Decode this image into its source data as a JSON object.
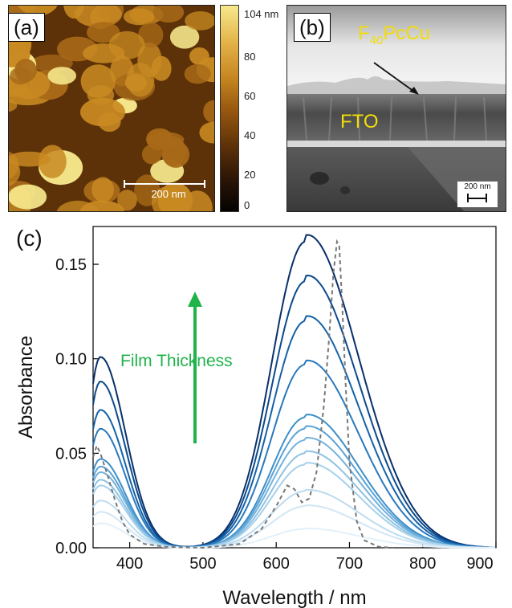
{
  "panel_a": {
    "label": "(a)",
    "scalebar_text": "200 nm",
    "colorbar": {
      "ticks": [
        "104 nm",
        "80",
        "60",
        "40",
        "20",
        "0"
      ],
      "colors": [
        "#050302",
        "#5e3208",
        "#c98a22",
        "#f6e88c"
      ]
    }
  },
  "panel_b": {
    "label": "(b)",
    "film_label_main": "F",
    "film_label_sub": "40",
    "film_label_rest": "PcCu",
    "substrate_label": "FTO",
    "scalebar_text": "200 nm",
    "label_color": "#f2dc0a"
  },
  "panel_c": {
    "label": "(c)",
    "annotation": "Film Thickness",
    "annotation_color": "#1fb34a"
  },
  "chart_data": {
    "type": "line",
    "xlabel": "Wavelength / nm",
    "ylabel": "Absorbance",
    "xlim": [
      350,
      900
    ],
    "ylim": [
      0,
      0.17
    ],
    "xticks": [
      "400",
      "500",
      "600",
      "700",
      "800",
      "900"
    ],
    "yticks": [
      "0.00",
      "0.05",
      "0.10",
      "0.15"
    ],
    "series_peaks": [
      {
        "a360": 0.101,
        "a640": 0.162,
        "color": "#08306b"
      },
      {
        "a360": 0.088,
        "a640": 0.141,
        "color": "#0b4a8c"
      },
      {
        "a360": 0.073,
        "a640": 0.12,
        "color": "#1462a8"
      },
      {
        "a360": 0.063,
        "a640": 0.097,
        "color": "#2878bd"
      },
      {
        "a360": 0.047,
        "a640": 0.069,
        "color": "#3d8fca"
      },
      {
        "a360": 0.043,
        "a640": 0.063,
        "color": "#5aa2d4"
      },
      {
        "a360": 0.04,
        "a640": 0.057,
        "color": "#73b2dc"
      },
      {
        "a360": 0.036,
        "a640": 0.05,
        "color": "#8ec2e3"
      },
      {
        "a360": 0.033,
        "a640": 0.044,
        "color": "#a6d0ea"
      },
      {
        "a360": 0.025,
        "a640": 0.03,
        "color": "#bcdcf0"
      },
      {
        "a360": 0.019,
        "a640": 0.022,
        "color": "#d1e6f5"
      },
      {
        "a360": 0.013,
        "a640": 0.01,
        "color": "#e3f0fa"
      }
    ],
    "reference_dashed": {
      "x": [
        350,
        355,
        360,
        370,
        380,
        390,
        400,
        420,
        450,
        500,
        550,
        580,
        600,
        615,
        625,
        635,
        645,
        655,
        665,
        672,
        678,
        683,
        686,
        690,
        695,
        700,
        710,
        720,
        740,
        760
      ],
      "y": [
        0.048,
        0.054,
        0.05,
        0.038,
        0.025,
        0.014,
        0.007,
        0.002,
        0.0005,
        0.0,
        0.002,
        0.01,
        0.022,
        0.033,
        0.031,
        0.024,
        0.026,
        0.04,
        0.075,
        0.11,
        0.145,
        0.162,
        0.16,
        0.13,
        0.085,
        0.045,
        0.014,
        0.004,
        0.0005,
        0.0
      ],
      "color": "#777777"
    }
  }
}
